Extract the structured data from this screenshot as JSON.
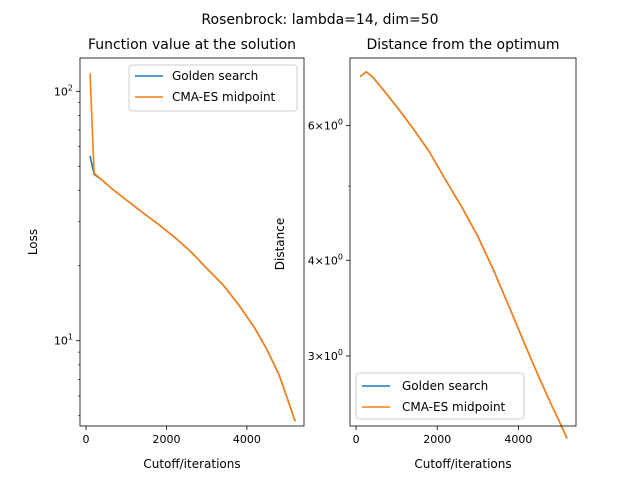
{
  "figure": {
    "suptitle": "Rosenbrock: lambda=14, dim=50",
    "colors": {
      "golden": "#1f77b4",
      "cma": "#ff7f0e"
    }
  },
  "chart_data": [
    {
      "type": "line",
      "title": "Function value at the solution",
      "xlabel": "Cutoff/iterations",
      "ylabel": "Loss",
      "yscale": "log",
      "xlim": [
        -150,
        5420
      ],
      "ylim": [
        4.55,
        136
      ],
      "xticks": [
        {
          "value": 0,
          "label": "0"
        },
        {
          "value": 2000,
          "label": "2000"
        },
        {
          "value": 4000,
          "label": "4000"
        }
      ],
      "yticks": [
        {
          "value": 10,
          "base": "10",
          "exp": "1"
        },
        {
          "value": 100,
          "base": "10",
          "exp": "2"
        }
      ],
      "legend": {
        "position": "top-right",
        "entries": [
          "Golden search",
          "CMA-ES midpoint"
        ]
      },
      "series": [
        {
          "name": "Golden search",
          "color": "#1f77b4",
          "x": [
            100,
            200,
            400,
            700,
            1000,
            1400,
            1800,
            2200,
            2600,
            3000,
            3400,
            3800,
            4200,
            4500,
            4800,
            5000,
            5200
          ],
          "y": [
            55,
            46.5,
            44,
            40,
            36.7,
            32.7,
            29.3,
            26,
            22.8,
            19.5,
            16.8,
            13.9,
            11.2,
            9.2,
            7.3,
            5.9,
            4.75
          ]
        },
        {
          "name": "CMA-ES midpoint",
          "color": "#ff7f0e",
          "x": [
            100,
            200,
            400,
            700,
            1000,
            1400,
            1800,
            2200,
            2600,
            3000,
            3400,
            3800,
            4200,
            4500,
            4800,
            5000,
            5200
          ],
          "y": [
            118,
            47,
            44,
            40,
            36.7,
            32.7,
            29.3,
            26,
            22.8,
            19.5,
            16.8,
            13.9,
            11.2,
            9.2,
            7.3,
            5.9,
            4.75
          ]
        }
      ]
    },
    {
      "type": "line",
      "title": "Distance from the optimum",
      "xlabel": "Cutoff/iterations",
      "ylabel": "Distance",
      "yscale": "log",
      "xlim": [
        -150,
        5420
      ],
      "ylim": [
        2.43,
        7.35
      ],
      "xticks": [
        {
          "value": 0,
          "label": "0"
        },
        {
          "value": 2000,
          "label": "2000"
        },
        {
          "value": 4000,
          "label": "4000"
        }
      ],
      "yticks": [
        {
          "value": 3,
          "mant": "3",
          "base": "10",
          "exp": "0"
        },
        {
          "value": 4,
          "mant": "4",
          "base": "10",
          "exp": "0"
        },
        {
          "value": 6,
          "mant": "6",
          "base": "10",
          "exp": "0"
        }
      ],
      "legend": {
        "position": "bottom-left",
        "entries": [
          "Golden search",
          "CMA-ES midpoint"
        ]
      },
      "series": [
        {
          "name": "Golden search",
          "color": "#1f77b4",
          "x": [
            100,
            250,
            400,
            700,
            1000,
            1400,
            1800,
            2200,
            2600,
            3000,
            3400,
            3800,
            4200,
            4500,
            4800,
            5000,
            5200
          ],
          "y": [
            6.95,
            7.05,
            6.95,
            6.65,
            6.35,
            5.95,
            5.55,
            5.1,
            4.7,
            4.3,
            3.87,
            3.45,
            3.07,
            2.82,
            2.6,
            2.47,
            2.34
          ]
        },
        {
          "name": "CMA-ES midpoint",
          "color": "#ff7f0e",
          "x": [
            100,
            250,
            400,
            700,
            1000,
            1400,
            1800,
            2200,
            2600,
            3000,
            3400,
            3800,
            4200,
            4500,
            4800,
            5000,
            5200
          ],
          "y": [
            6.95,
            7.05,
            6.95,
            6.65,
            6.35,
            5.95,
            5.55,
            5.1,
            4.7,
            4.3,
            3.87,
            3.45,
            3.07,
            2.82,
            2.6,
            2.47,
            2.34
          ]
        }
      ]
    }
  ]
}
